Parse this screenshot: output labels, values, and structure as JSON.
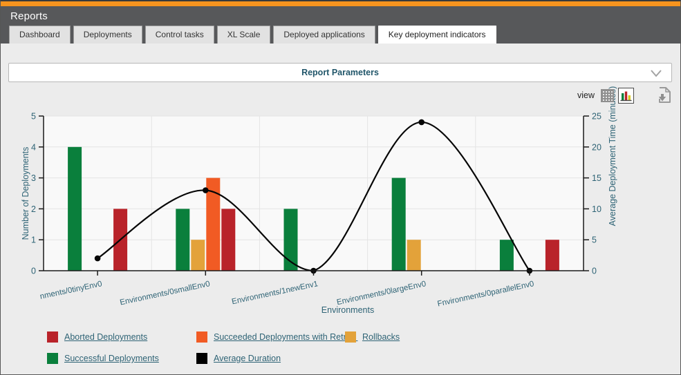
{
  "header": {
    "title": "Reports",
    "tabs": [
      {
        "label": "Dashboard",
        "active": false
      },
      {
        "label": "Deployments",
        "active": false
      },
      {
        "label": "Control tasks",
        "active": false
      },
      {
        "label": "XL Scale",
        "active": false
      },
      {
        "label": "Deployed applications",
        "active": false
      },
      {
        "label": "Key deployment indicators",
        "active": true
      }
    ]
  },
  "params_panel": {
    "label": "Report Parameters"
  },
  "toolbar": {
    "view_label": "view",
    "icons": [
      "table-view-icon",
      "chart-view-icon",
      "download-report-icon"
    ],
    "selected_view": "chart"
  },
  "chart_data": {
    "type": "bar",
    "subtype": "grouped bars with overlaid line (dual axis)",
    "categories": [
      "nments/0tinyEnv0",
      "Environments/0smallEnv0",
      "Environments/1newEnv1",
      "Environments/0largeEnv0",
      "Fnvironments/0parallelEnv0"
    ],
    "series": [
      {
        "name": "Successful Deployments",
        "type": "bar",
        "color": "#0a7f3c",
        "axis": "left",
        "values": [
          4,
          2,
          2,
          3,
          1
        ]
      },
      {
        "name": "Rollbacks",
        "type": "bar",
        "color": "#e3a23a",
        "axis": "left",
        "values": [
          0,
          1,
          0,
          1,
          0
        ]
      },
      {
        "name": "Succeeded Deployments with Retry",
        "type": "bar",
        "color": "#f15b24",
        "axis": "left",
        "values": [
          0,
          3,
          0,
          0,
          0
        ]
      },
      {
        "name": "Aborted Deployments",
        "type": "bar",
        "color": "#b9232a",
        "axis": "left",
        "values": [
          2,
          2,
          0,
          0,
          1
        ]
      },
      {
        "name": "Average Duration",
        "type": "line",
        "color": "#060606",
        "axis": "right",
        "values": [
          2,
          13,
          0,
          24,
          0
        ]
      }
    ],
    "xlabel": "Environments",
    "ylabel_left": "Number of Deployments",
    "ylabel_right": "Average Deployment Time (minutes)",
    "ylim_left": [
      0,
      5
    ],
    "ylim_right": [
      0,
      25
    ],
    "yticks_left": [
      0,
      1,
      2,
      3,
      4,
      5
    ],
    "yticks_right": [
      0,
      5,
      10,
      15,
      20,
      25
    ],
    "grid": true,
    "plot_bg": "#f9f9f9",
    "grid_color": "#e4e4e4",
    "axis_color": "#1a1a1a",
    "text_color": "#2e6375",
    "legend_position": "bottom"
  },
  "legend": {
    "items": [
      {
        "label": "Aborted Deployments",
        "color": "#b9232a",
        "row": 0,
        "col": 0
      },
      {
        "label": "Succeeded Deployments with Retry   ",
        "color": "#f15b24",
        "row": 0,
        "col": 1
      },
      {
        "label": "Rollbacks",
        "color": "#e3a23a",
        "row": 0,
        "col": 2
      },
      {
        "label": "Successful Deployments",
        "color": "#0a7f3c",
        "row": 1,
        "col": 0
      },
      {
        "label": "Average Duration",
        "color": "#000000",
        "row": 1,
        "col": 1
      }
    ]
  },
  "colors": {
    "brand_orange": "#f7941e",
    "header_gray": "#57585a",
    "page_bg": "#ececec",
    "teal_text": "#2e6375"
  }
}
